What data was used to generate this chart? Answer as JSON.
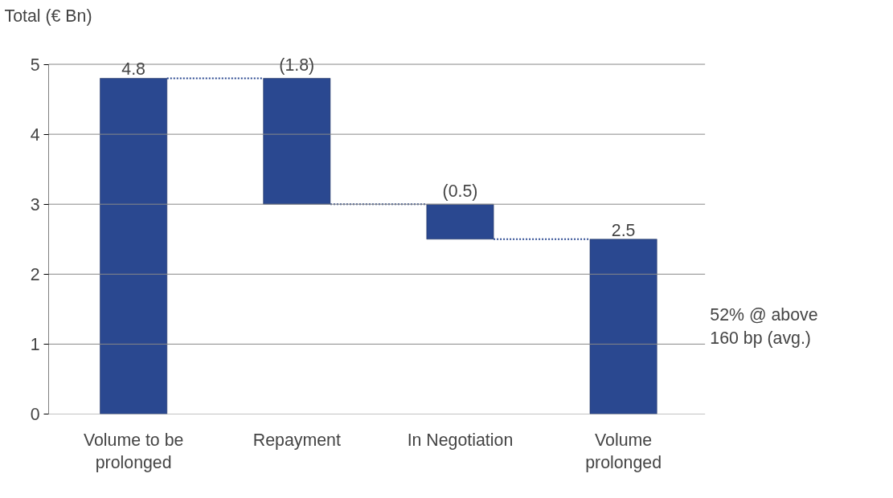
{
  "chart_data": {
    "type": "bar",
    "ylabel": "Total (€ Bn)",
    "categories": [
      "Volume to be prolonged",
      "Repayment",
      "In Negotiation",
      "Volume prolonged"
    ],
    "values": [
      4.8,
      -1.8,
      -0.5,
      2.5
    ],
    "base": [
      0,
      4.8,
      3.0,
      0
    ],
    "value_labels": [
      "4.8",
      "(1.8)",
      "(0.5)",
      "2.5"
    ],
    "color": "#2a4890",
    "ylim": [
      0,
      5
    ],
    "yticks": [
      0,
      1,
      2,
      3,
      4,
      5
    ],
    "grid": "y",
    "annotations": [
      "52% @ above 160 bp (avg.)"
    ]
  }
}
